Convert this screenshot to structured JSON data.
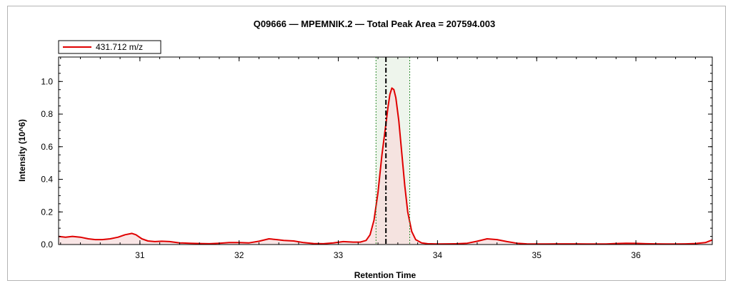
{
  "chart_data": {
    "type": "line",
    "title": "Q09666 — MPEMNIK.2 — Total Peak Area = 207594.003",
    "xlabel": "Retention Time",
    "ylabel": "Intensity (10^6)",
    "xlim": [
      30.18,
      36.77
    ],
    "ylim": [
      0,
      1.15
    ],
    "xticks": [
      31,
      32,
      33,
      34,
      35,
      36
    ],
    "xtick_labels": [
      "31",
      "32",
      "33",
      "34",
      "35",
      "36"
    ],
    "yticks": [
      0,
      0.2,
      0.4,
      0.6,
      0.8,
      1.0
    ],
    "ytick_labels": [
      "0.0",
      "0.2",
      "0.4",
      "0.6",
      "0.8",
      "1.0"
    ],
    "grid": false,
    "legend_position": "top-left",
    "series": [
      {
        "name": "431.712 m/z",
        "color": "#e00000",
        "fill_color": "#f7dcdc",
        "x": [
          30.18,
          30.25,
          30.32,
          30.4,
          30.48,
          30.55,
          30.62,
          30.7,
          30.78,
          30.85,
          30.92,
          30.96,
          31.02,
          31.08,
          31.15,
          31.22,
          31.3,
          31.4,
          31.5,
          31.6,
          31.7,
          31.8,
          31.9,
          32.0,
          32.1,
          32.2,
          32.3,
          32.38,
          32.45,
          32.55,
          32.65,
          32.75,
          32.85,
          32.95,
          33.05,
          33.15,
          33.22,
          33.28,
          33.32,
          33.36,
          33.4,
          33.44,
          33.48,
          33.5,
          33.52,
          33.54,
          33.56,
          33.58,
          33.61,
          33.64,
          33.67,
          33.7,
          33.74,
          33.78,
          33.84,
          33.9,
          34.0,
          34.1,
          34.2,
          34.3,
          34.4,
          34.5,
          34.6,
          34.7,
          34.8,
          34.9,
          35.0,
          35.1,
          35.2,
          35.3,
          35.4,
          35.5,
          35.6,
          35.7,
          35.8,
          35.9,
          36.0,
          36.1,
          36.2,
          36.3,
          36.4,
          36.5,
          36.6,
          36.7,
          36.77
        ],
        "values": [
          0.05,
          0.045,
          0.05,
          0.045,
          0.035,
          0.03,
          0.03,
          0.035,
          0.045,
          0.06,
          0.068,
          0.06,
          0.035,
          0.022,
          0.018,
          0.02,
          0.018,
          0.01,
          0.008,
          0.006,
          0.005,
          0.008,
          0.012,
          0.012,
          0.01,
          0.02,
          0.035,
          0.03,
          0.025,
          0.022,
          0.012,
          0.006,
          0.005,
          0.01,
          0.018,
          0.015,
          0.015,
          0.025,
          0.06,
          0.15,
          0.32,
          0.55,
          0.74,
          0.84,
          0.92,
          0.96,
          0.95,
          0.9,
          0.76,
          0.56,
          0.36,
          0.2,
          0.08,
          0.03,
          0.01,
          0.005,
          0.003,
          0.004,
          0.005,
          0.008,
          0.02,
          0.035,
          0.03,
          0.018,
          0.008,
          0.004,
          0.003,
          0.003,
          0.004,
          0.004,
          0.004,
          0.003,
          0.003,
          0.003,
          0.006,
          0.008,
          0.007,
          0.005,
          0.004,
          0.003,
          0.003,
          0.004,
          0.006,
          0.012,
          0.028
        ]
      }
    ],
    "annotations": {
      "integration_start": 33.38,
      "integration_end": 33.72,
      "retention_marker": 33.48,
      "boundary_color": "#2e8b2e",
      "band_color": "#eef5ec",
      "marker_color": "#000000"
    }
  }
}
